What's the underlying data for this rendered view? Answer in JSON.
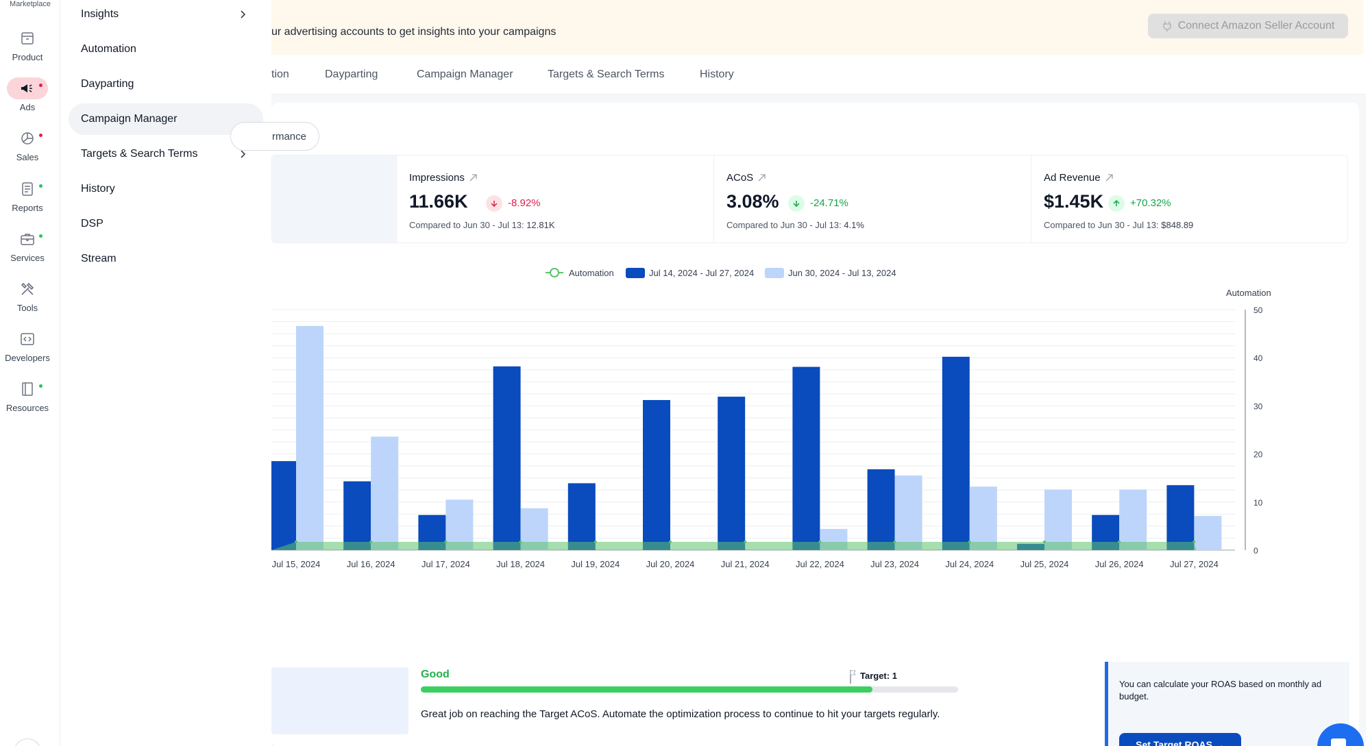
{
  "rail": {
    "logo": "Marketplace",
    "items": [
      {
        "label": "Product",
        "icon": "archive-box-icon",
        "dot": ""
      },
      {
        "label": "Ads",
        "icon": "megaphone-icon",
        "dot": "#e11d48"
      },
      {
        "label": "Sales",
        "icon": "pie-chart-icon",
        "dot": "#e11d48"
      },
      {
        "label": "Reports",
        "icon": "document-icon",
        "dot": "#22c55e"
      },
      {
        "label": "Services",
        "icon": "briefcase-icon",
        "dot": "#22c55e"
      },
      {
        "label": "Tools",
        "icon": "tools-icon",
        "dot": ""
      },
      {
        "label": "Developers",
        "icon": "code-icon",
        "dot": ""
      },
      {
        "label": "Resources",
        "icon": "book-icon",
        "dot": "#22c55e"
      }
    ]
  },
  "menu": {
    "items": [
      {
        "label": "Insights",
        "has_chevron": true
      },
      {
        "label": "Automation",
        "has_chevron": false
      },
      {
        "label": "Dayparting",
        "has_chevron": false
      },
      {
        "label": "Campaign Manager",
        "has_chevron": false,
        "active": true
      },
      {
        "label": "Targets & Search Terms",
        "has_chevron": true
      },
      {
        "label": "History",
        "has_chevron": false
      },
      {
        "label": "DSP",
        "has_chevron": false
      },
      {
        "label": "Stream",
        "has_chevron": false
      }
    ]
  },
  "banner": {
    "text": "ur advertising accounts to get insights into your campaigns",
    "connect_label": "Connect Amazon Seller Account"
  },
  "tabs": [
    "tion",
    "Dayparting",
    "Campaign Manager",
    "Targets & Search Terms",
    "History"
  ],
  "filter_pill": "rmance",
  "metrics": [
    {
      "title": "Impressions",
      "value": "11.66K",
      "delta": "-8.92%",
      "direction": "down",
      "compare_label": "Compared to Jun 30 - Jul 13:",
      "compare_value": "12.81K"
    },
    {
      "title": "ACoS",
      "value": "3.08%",
      "delta": "-24.71%",
      "direction": "down-good",
      "compare_label": "Compared to Jun 30 - Jul 13:",
      "compare_value": "4.1%"
    },
    {
      "title": "Ad Revenue",
      "value": "$1.45K",
      "delta": "+70.32%",
      "direction": "up",
      "compare_label": "Compared to Jun 30 - Jul 13:",
      "compare_value": "$848.89"
    }
  ],
  "colors": {
    "current": "#0a4bbd",
    "previous": "#bdd5fb",
    "automation": "#5cc26b",
    "negative": "#e11d48",
    "positive": "#16a34a"
  },
  "chart_data": {
    "type": "bar",
    "categories": [
      "Jul 15, 2024",
      "Jul 16, 2024",
      "Jul 17, 2024",
      "Jul 18, 2024",
      "Jul 19, 2024",
      "Jul 20, 2024",
      "Jul 21, 2024",
      "Jul 22, 2024",
      "Jul 23, 2024",
      "Jul 24, 2024",
      "Jul 25, 2024",
      "Jul 26, 2024",
      "Jul 27, 2024"
    ],
    "series": [
      {
        "name": "Jul 14, 2024 - Jul 27, 2024",
        "values": [
          18.5,
          14.3,
          7.3,
          38.2,
          13.9,
          31.2,
          31.9,
          38.1,
          16.8,
          40.2,
          1.3,
          7.3,
          13.5
        ]
      },
      {
        "name": "Jun 30, 2024 - Jul 13, 2024",
        "values": [
          46.6,
          23.6,
          10.5,
          8.7,
          0,
          0,
          0,
          4.4,
          15.5,
          13.2,
          12.6,
          12.6,
          7.1
        ]
      },
      {
        "name": "Automation",
        "values": [
          1,
          1,
          1,
          1,
          1,
          1,
          1,
          1,
          1,
          1,
          1,
          1,
          1
        ]
      }
    ],
    "right_axis_title": "Automation",
    "ylim": [
      0,
      50
    ],
    "yticks": [
      "0",
      "10",
      "20",
      "30",
      "40",
      "50"
    ],
    "legend": "top-center",
    "grid": true
  },
  "bottom": {
    "status": "Good",
    "progress": 0.84,
    "target_label": "Target: 1",
    "message": "Great job on reaching the Target ACoS. Automate the optimization process to continue to hit your targets regularly.",
    "roas_text": "You can calculate your ROAS based on monthly ad budget.",
    "roas_button": "Set Target ROAS →"
  }
}
